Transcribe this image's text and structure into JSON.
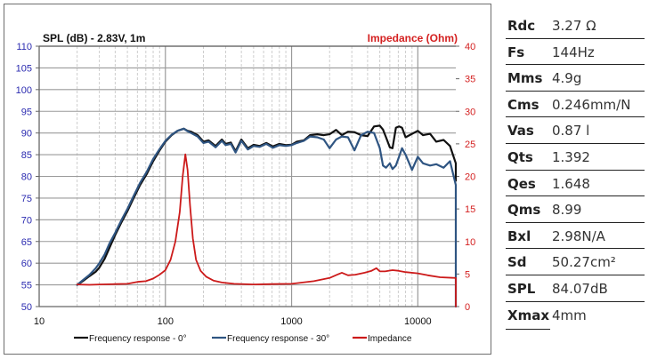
{
  "chart_data": {
    "type": "line",
    "title_left": "SPL (dB) - 2.83V, 1m",
    "title_right": "Impedance (Ohm)",
    "xscale": "log",
    "xlim": [
      10,
      20000
    ],
    "ylim_left": [
      50,
      110
    ],
    "ylim_right": [
      0,
      40
    ],
    "x_ticks": [
      10,
      100,
      1000,
      10000
    ],
    "x_tick_labels": [
      "10",
      "100",
      "1000",
      "10000"
    ],
    "y_left_ticks": [
      50,
      55,
      60,
      65,
      70,
      75,
      80,
      85,
      90,
      95,
      100,
      105,
      110
    ],
    "y_left_tick_labels": [
      "50",
      "55",
      "60",
      "65",
      "70",
      "75",
      "80",
      "85",
      "90",
      "95",
      "100",
      "105",
      "110"
    ],
    "y_right_ticks": [
      0,
      5,
      10,
      15,
      20,
      25,
      30,
      35,
      40
    ],
    "y_right_tick_labels": [
      "0",
      "5",
      "10",
      "15",
      "20",
      "25",
      "30",
      "35",
      "40"
    ],
    "grid": true,
    "legend_position": "bottom",
    "colors": {
      "left_axis": "#2b2bb0",
      "right_axis": "#d42020",
      "fr0": "#111111",
      "fr30": "#2f5582",
      "imp": "#cc1a1a",
      "grid_major": "#9a9a9a",
      "grid_minor": "#c8c8c8"
    },
    "series": [
      {
        "name": "Frequency response - 0°",
        "axis": "left",
        "x": [
          20,
          22,
          25,
          28,
          30,
          33,
          36,
          40,
          45,
          50,
          56,
          63,
          71,
          80,
          90,
          100,
          112,
          125,
          140,
          150,
          160,
          180,
          200,
          220,
          250,
          280,
          300,
          330,
          360,
          400,
          450,
          500,
          560,
          630,
          710,
          800,
          900,
          1000,
          1100,
          1250,
          1400,
          1600,
          1800,
          2000,
          2250,
          2500,
          2800,
          3150,
          3550,
          4000,
          4500,
          5000,
          5300,
          5600,
          6000,
          6300,
          6700,
          7100,
          7500,
          8000,
          9000,
          10000,
          11000,
          12500,
          14000,
          16000,
          18000,
          20000
        ],
        "y": [
          55,
          55.8,
          57,
          58,
          59,
          61,
          63.5,
          66.5,
          69.5,
          72,
          75,
          78,
          80.5,
          83.5,
          86,
          88,
          89.5,
          90.5,
          91,
          90.5,
          90.3,
          89.5,
          88,
          88.3,
          87,
          88.5,
          87.5,
          87.8,
          85.8,
          88.5,
          86.5,
          87.3,
          87,
          87.7,
          86.9,
          87.5,
          87.2,
          87.3,
          88,
          88.3,
          89.5,
          89.7,
          89.5,
          89.7,
          90.7,
          89.5,
          90.3,
          90.2,
          89.5,
          89.3,
          91.5,
          91.7,
          90.8,
          89,
          86.7,
          86.5,
          91.2,
          91.5,
          91.2,
          89,
          89.8,
          90.5,
          89.5,
          89.8,
          88,
          88.4,
          87,
          83
        ]
      },
      {
        "name": "Frequency response - 30°",
        "axis": "left",
        "x": [
          20,
          22,
          25,
          28,
          30,
          33,
          36,
          40,
          45,
          50,
          56,
          63,
          71,
          80,
          90,
          100,
          112,
          125,
          140,
          150,
          160,
          180,
          200,
          220,
          250,
          280,
          300,
          330,
          360,
          400,
          450,
          500,
          560,
          630,
          710,
          800,
          900,
          1000,
          1100,
          1250,
          1400,
          1600,
          1800,
          2000,
          2250,
          2500,
          2800,
          3150,
          3550,
          4000,
          4500,
          5000,
          5300,
          5600,
          6000,
          6300,
          6700,
          7100,
          7500,
          8000,
          9000,
          10000,
          11000,
          12500,
          14000,
          16000,
          18000,
          20000
        ],
        "y": [
          55,
          56,
          57.3,
          58.8,
          60,
          62,
          64.5,
          67,
          70,
          72.5,
          75.5,
          78.5,
          81,
          84,
          86.3,
          88.2,
          89.6,
          90.5,
          91,
          90.4,
          90,
          89.2,
          87.7,
          88,
          86.7,
          88.2,
          87.2,
          87.5,
          85.5,
          88.2,
          86.2,
          87,
          86.8,
          87.5,
          86.6,
          87.2,
          87,
          87.2,
          87.7,
          88.2,
          89.2,
          89,
          88.5,
          86.5,
          88.5,
          89.2,
          89,
          86,
          89.5,
          90.3,
          90,
          86.5,
          82.5,
          82,
          83,
          81.7,
          82.5,
          84.5,
          86.5,
          85,
          81.5,
          84.5,
          83,
          82.5,
          82.8,
          82,
          83.5,
          78
        ]
      },
      {
        "name": "Impedance",
        "axis": "right",
        "x": [
          20,
          25,
          30,
          40,
          50,
          60,
          70,
          80,
          90,
          100,
          110,
          120,
          130,
          137,
          144,
          150,
          157,
          165,
          175,
          190,
          210,
          240,
          280,
          350,
          500,
          700,
          1000,
          1500,
          2000,
          2300,
          2500,
          2800,
          3200,
          3800,
          4300,
          4700,
          5000,
          5500,
          6300,
          7000,
          8000,
          10000,
          12000,
          15000,
          20000
        ],
        "y": [
          3.4,
          3.35,
          3.4,
          3.45,
          3.5,
          3.8,
          3.9,
          4.3,
          4.9,
          5.6,
          7.2,
          10.0,
          14.5,
          20.0,
          23.4,
          21.0,
          15.5,
          10.5,
          7.2,
          5.5,
          4.6,
          4.0,
          3.7,
          3.5,
          3.4,
          3.45,
          3.5,
          3.9,
          4.4,
          4.9,
          5.2,
          4.8,
          4.9,
          5.2,
          5.5,
          5.9,
          5.4,
          5.4,
          5.6,
          5.5,
          5.3,
          5.1,
          4.8,
          4.5,
          4.4
        ]
      }
    ]
  },
  "specs": [
    {
      "label": "Rdc",
      "value": "3.27 Ω"
    },
    {
      "label": "Fs",
      "value": "144Hz"
    },
    {
      "label": "Mms",
      "value": "4.9g"
    },
    {
      "label": "Cms",
      "value": "0.246mm/N"
    },
    {
      "label": "Vas",
      "value": "0.87 l"
    },
    {
      "label": "Qts",
      "value": "1.392"
    },
    {
      "label": "Qes",
      "value": "1.648"
    },
    {
      "label": "Qms",
      "value": "8.99"
    },
    {
      "label": "Bxl",
      "value": "2.98N/A"
    },
    {
      "label": "Sd",
      "value": "50.27cm²"
    },
    {
      "label": "SPL",
      "value": "84.07dB"
    },
    {
      "label": "Xmax",
      "value": "4mm"
    }
  ]
}
